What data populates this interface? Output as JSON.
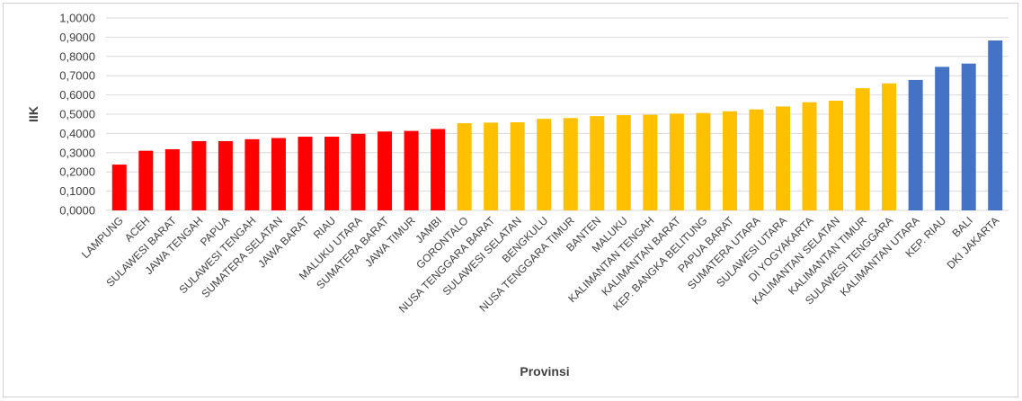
{
  "chart_data": {
    "type": "bar",
    "xlabel": "Provinsi",
    "ylabel": "IIK",
    "ylim": [
      0,
      1
    ],
    "y_ticks": [
      "0,0000",
      "0,1000",
      "0,2000",
      "0,3000",
      "0,4000",
      "0,5000",
      "0,6000",
      "0,7000",
      "0,8000",
      "0,9000",
      "1,0000"
    ],
    "grid": true,
    "colors": {
      "low": "#ff0000",
      "medium": "#ffc000",
      "high": "#4472c4",
      "grid": "#d9d9d9"
    },
    "categories": [
      "LAMPUNG",
      "ACEH",
      "SULAWESI BARAT",
      "JAWA TENGAH",
      "PAPUA",
      "SULAWESI TENGAH",
      "SUMATERA SELATAN",
      "JAWA BARAT",
      "RIAU",
      "MALUKU UTARA",
      "SUMATERA BARAT",
      "JAWA TIMUR",
      "JAMBI",
      "GORONTALO",
      "NUSA TENGGARA BARAT",
      "SULAWESI SELATAN",
      "BENGKULU",
      "NUSA TENGGARA TIMUR",
      "BANTEN",
      "MALUKU",
      "KALIMANTAN TENGAH",
      "KALIMANTAN BARAT",
      "KEP. BANGKA BELITUNG",
      "PAPUA BARAT",
      "SUMATERA UTARA",
      "SULAWESI UTARA",
      "DI YOGYAKARTA",
      "KALIMANTAN SELATAN",
      "KALIMANTAN TIMUR",
      "SULAWESI TENGGARA",
      "KALIMANTAN UTARA",
      "KEP. RIAU",
      "BALI",
      "DKI JAKARTA"
    ],
    "values": [
      0.238,
      0.31,
      0.318,
      0.36,
      0.36,
      0.37,
      0.376,
      0.383,
      0.383,
      0.398,
      0.41,
      0.413,
      0.423,
      0.453,
      0.456,
      0.458,
      0.476,
      0.48,
      0.49,
      0.495,
      0.497,
      0.503,
      0.506,
      0.515,
      0.525,
      0.54,
      0.562,
      0.57,
      0.635,
      0.66,
      0.678,
      0.746,
      0.763,
      0.883
    ],
    "groups": [
      "low",
      "low",
      "low",
      "low",
      "low",
      "low",
      "low",
      "low",
      "low",
      "low",
      "low",
      "low",
      "low",
      "medium",
      "medium",
      "medium",
      "medium",
      "medium",
      "medium",
      "medium",
      "medium",
      "medium",
      "medium",
      "medium",
      "medium",
      "medium",
      "medium",
      "medium",
      "medium",
      "medium",
      "high",
      "high",
      "high",
      "high"
    ]
  }
}
